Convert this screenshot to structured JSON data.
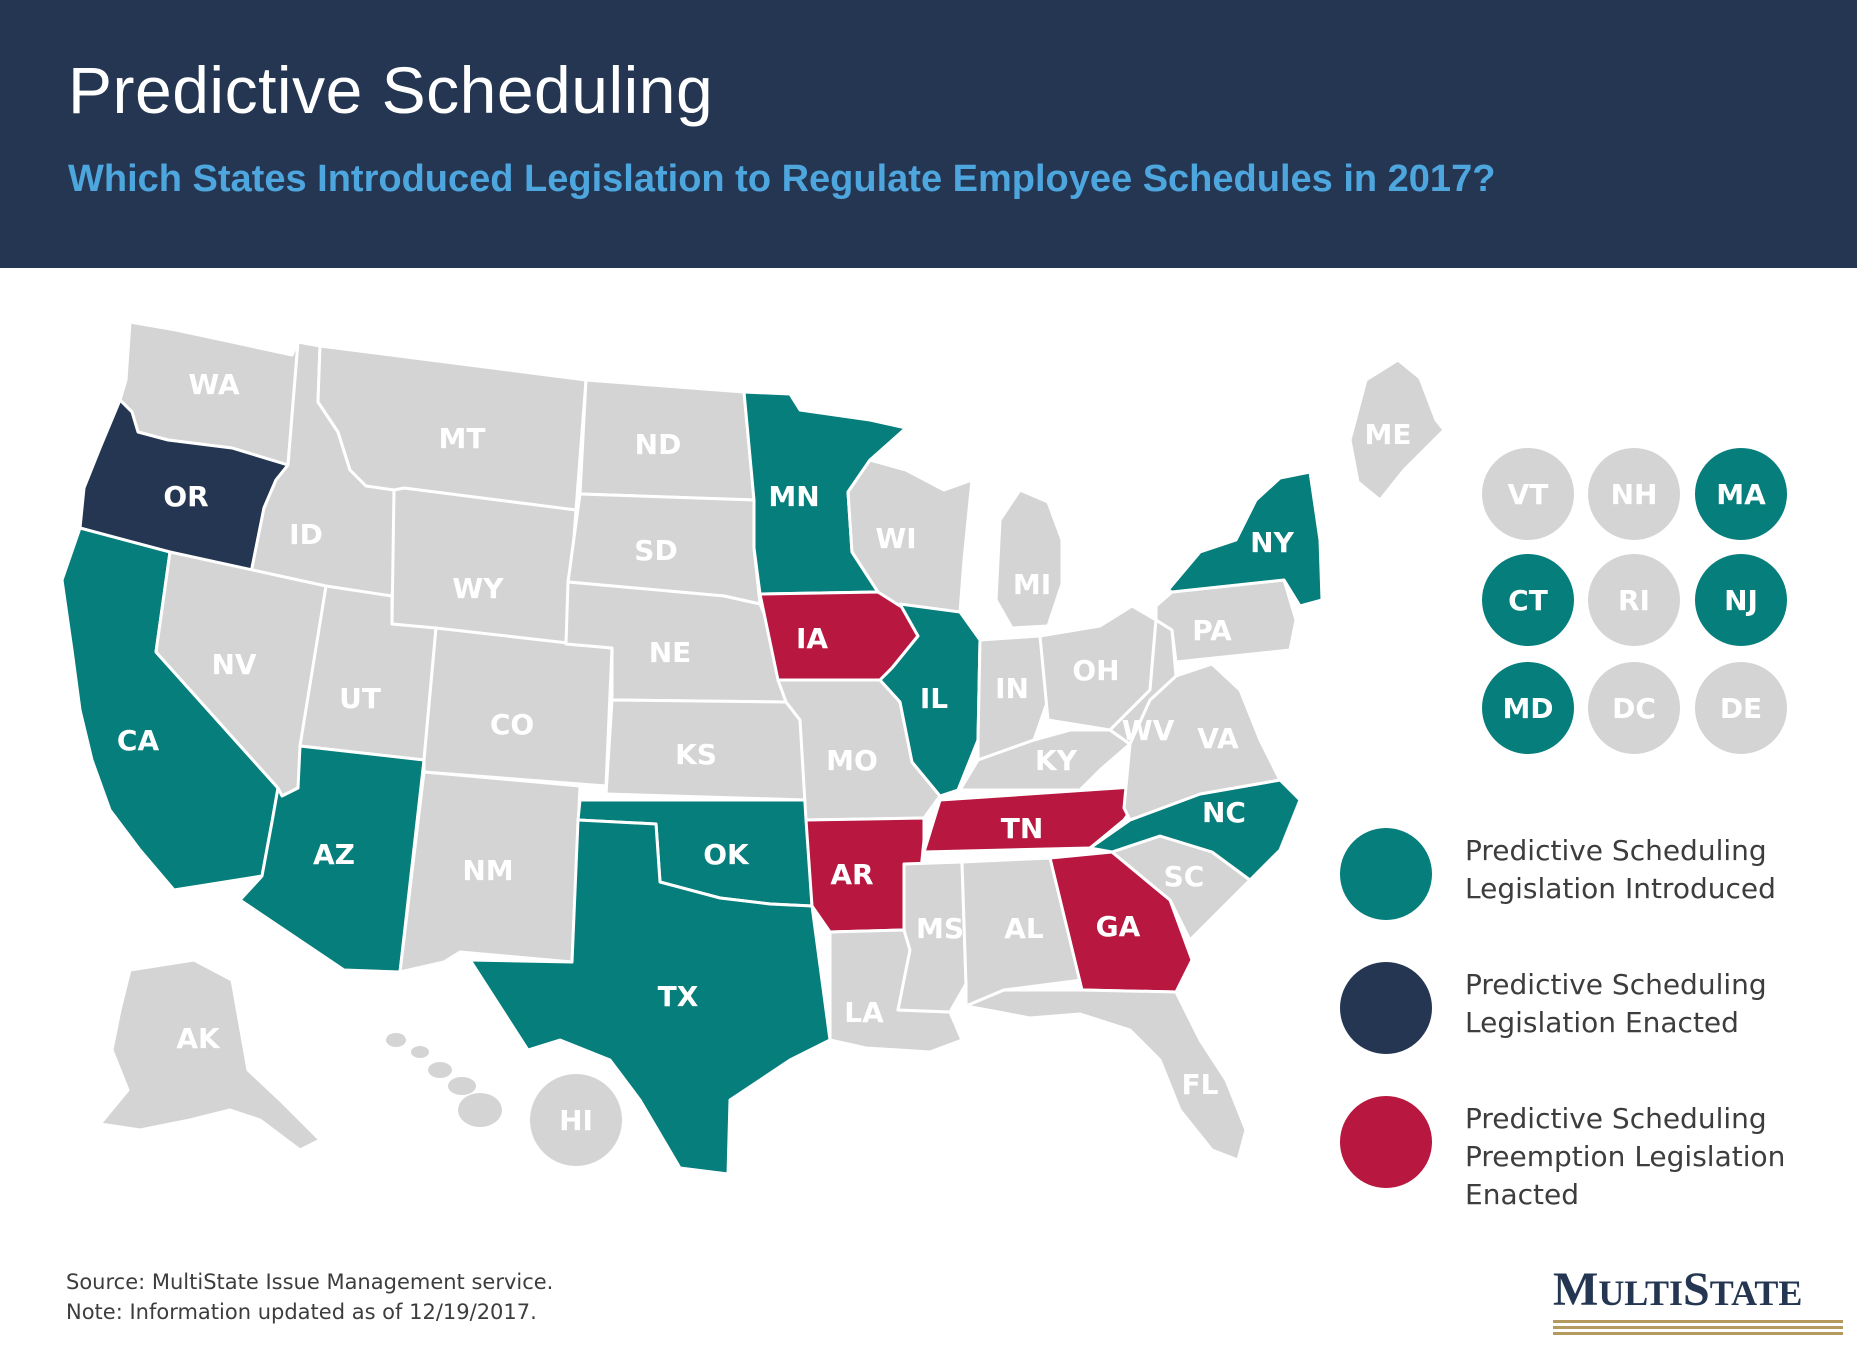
{
  "header": {
    "title": "Predictive Scheduling",
    "subtitle": "Which States Introduced Legislation to Regulate Employee Schedules in 2017?"
  },
  "colors": {
    "header_bg": "#243652",
    "subtitle": "#4ea6de",
    "introduced": "#057e7c",
    "enacted": "#243652",
    "preemption": "#b8173f",
    "none": "#d4d4d4"
  },
  "map": {
    "states": [
      {
        "abbr": "WA",
        "status": "none"
      },
      {
        "abbr": "OR",
        "status": "enacted"
      },
      {
        "abbr": "CA",
        "status": "introduced"
      },
      {
        "abbr": "ID",
        "status": "none"
      },
      {
        "abbr": "NV",
        "status": "none"
      },
      {
        "abbr": "MT",
        "status": "none"
      },
      {
        "abbr": "WY",
        "status": "none"
      },
      {
        "abbr": "UT",
        "status": "none"
      },
      {
        "abbr": "AZ",
        "status": "introduced"
      },
      {
        "abbr": "CO",
        "status": "none"
      },
      {
        "abbr": "NM",
        "status": "none"
      },
      {
        "abbr": "ND",
        "status": "none"
      },
      {
        "abbr": "SD",
        "status": "none"
      },
      {
        "abbr": "NE",
        "status": "none"
      },
      {
        "abbr": "KS",
        "status": "none"
      },
      {
        "abbr": "OK",
        "status": "introduced"
      },
      {
        "abbr": "TX",
        "status": "introduced"
      },
      {
        "abbr": "MN",
        "status": "introduced"
      },
      {
        "abbr": "IA",
        "status": "preemption"
      },
      {
        "abbr": "MO",
        "status": "none"
      },
      {
        "abbr": "AR",
        "status": "preemption"
      },
      {
        "abbr": "LA",
        "status": "none"
      },
      {
        "abbr": "WI",
        "status": "none"
      },
      {
        "abbr": "IL",
        "status": "introduced"
      },
      {
        "abbr": "MI",
        "status": "none"
      },
      {
        "abbr": "IN",
        "status": "none"
      },
      {
        "abbr": "OH",
        "status": "none"
      },
      {
        "abbr": "KY",
        "status": "none"
      },
      {
        "abbr": "TN",
        "status": "preemption"
      },
      {
        "abbr": "MS",
        "status": "none"
      },
      {
        "abbr": "AL",
        "status": "none"
      },
      {
        "abbr": "GA",
        "status": "preemption"
      },
      {
        "abbr": "FL",
        "status": "none"
      },
      {
        "abbr": "SC",
        "status": "none"
      },
      {
        "abbr": "NC",
        "status": "introduced"
      },
      {
        "abbr": "VA",
        "status": "none"
      },
      {
        "abbr": "WV",
        "status": "none"
      },
      {
        "abbr": "PA",
        "status": "none"
      },
      {
        "abbr": "NY",
        "status": "introduced"
      },
      {
        "abbr": "ME",
        "status": "none"
      },
      {
        "abbr": "AK",
        "status": "none"
      }
    ],
    "hawaii": {
      "abbr": "HI",
      "status": "none"
    },
    "small_states": [
      {
        "abbr": "VT",
        "status": "none"
      },
      {
        "abbr": "NH",
        "status": "none"
      },
      {
        "abbr": "MA",
        "status": "introduced"
      },
      {
        "abbr": "CT",
        "status": "introduced"
      },
      {
        "abbr": "RI",
        "status": "none"
      },
      {
        "abbr": "NJ",
        "status": "introduced"
      },
      {
        "abbr": "MD",
        "status": "introduced"
      },
      {
        "abbr": "DC",
        "status": "none"
      },
      {
        "abbr": "DE",
        "status": "none"
      }
    ]
  },
  "legend": [
    {
      "status": "introduced",
      "line1": "Predictive Scheduling",
      "line2": "Legislation Introduced",
      "line3": ""
    },
    {
      "status": "enacted",
      "line1": "Predictive Scheduling",
      "line2": "Legislation Enacted",
      "line3": ""
    },
    {
      "status": "preemption",
      "line1": "Predictive Scheduling",
      "line2": "Preemption Legislation",
      "line3": "Enacted"
    }
  ],
  "footer": {
    "source": "Source: MultiState Issue Management  service.",
    "note": "Note: Information updated as of 12/19/2017.",
    "logo": {
      "big1": "M",
      "small1": "ULTI",
      "big2": "S",
      "small2": "TATE"
    }
  }
}
